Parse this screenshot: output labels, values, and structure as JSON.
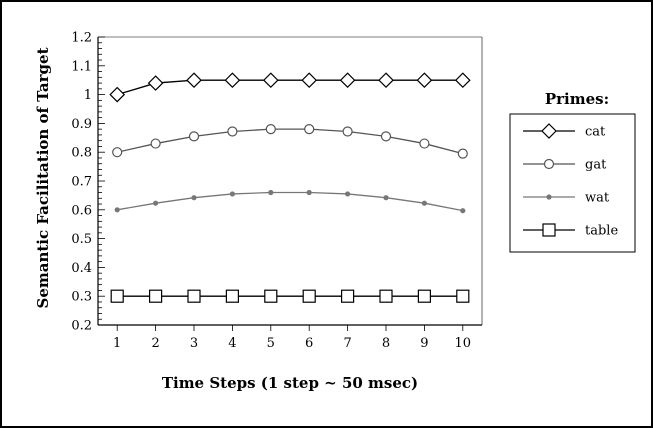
{
  "chart_data": {
    "type": "line",
    "title": "",
    "xlabel": "Time Steps (1 step ~ 50 msec)",
    "ylabel": "Semantic Facilitation of Target",
    "x": [
      1,
      2,
      3,
      4,
      5,
      6,
      7,
      8,
      9,
      10
    ],
    "xlim": [
      0.5,
      10.5
    ],
    "ylim": [
      0.2,
      1.2
    ],
    "yticks": [
      "0.2",
      "0.3",
      "0.4",
      "0.5",
      "0.6",
      "0.7",
      "0.8",
      "0.9",
      "1",
      "1.1",
      "1.2"
    ],
    "xticks": [
      "1",
      "2",
      "3",
      "4",
      "5",
      "6",
      "7",
      "8",
      "9",
      "10"
    ],
    "grid": false,
    "legend": {
      "title": "Primes:",
      "position": "right"
    },
    "series": [
      {
        "name": "cat",
        "marker": "diamond",
        "color": "#000000",
        "values": [
          1.0,
          1.04,
          1.05,
          1.05,
          1.05,
          1.05,
          1.05,
          1.05,
          1.05,
          1.05
        ]
      },
      {
        "name": "gat",
        "marker": "circle",
        "color": "#555555",
        "values": [
          0.8,
          0.83,
          0.855,
          0.872,
          0.88,
          0.88,
          0.872,
          0.855,
          0.83,
          0.795
        ]
      },
      {
        "name": "wat",
        "marker": "dot",
        "color": "#777777",
        "values": [
          0.6,
          0.623,
          0.642,
          0.655,
          0.66,
          0.66,
          0.655,
          0.642,
          0.623,
          0.597
        ]
      },
      {
        "name": "table",
        "marker": "square",
        "color": "#000000",
        "values": [
          0.3,
          0.3,
          0.3,
          0.3,
          0.3,
          0.3,
          0.3,
          0.3,
          0.3,
          0.3
        ]
      }
    ]
  }
}
